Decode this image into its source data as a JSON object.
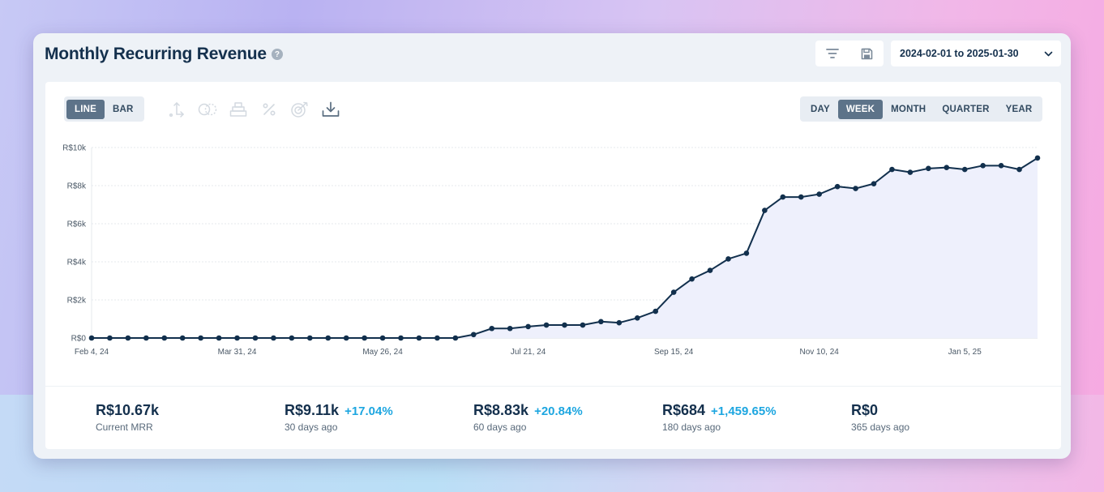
{
  "header": {
    "title": "Monthly Recurring Revenue",
    "help_icon": "question-icon",
    "tools": [
      "filter-icon",
      "save-icon"
    ],
    "date_range": "2024-02-01 to 2025-01-30"
  },
  "chart_type_toggle": {
    "options": [
      "LINE",
      "BAR"
    ],
    "selected": "LINE"
  },
  "chart_tools": [
    "axis-icon",
    "compare-icon",
    "stack-icon",
    "percent-icon",
    "goal-icon",
    "download-icon"
  ],
  "period_toggle": {
    "options": [
      "DAY",
      "WEEK",
      "MONTH",
      "QUARTER",
      "YEAR"
    ],
    "selected": "WEEK"
  },
  "colors": {
    "line": "#12304d",
    "fill": "#eef0fc",
    "accent_change": "#1da6e0",
    "active_toggle": "#5d7389"
  },
  "chart_data": {
    "type": "area",
    "ylabel": "",
    "xlabel": "",
    "ylim": [
      0,
      10000
    ],
    "yticks": [
      "R$0",
      "R$2k",
      "R$4k",
      "R$6k",
      "R$8k",
      "R$10k"
    ],
    "xticks": [
      "Feb 4, 24",
      "Mar 31, 24",
      "May 26, 24",
      "Jul 21, 24",
      "Sep 15, 24",
      "Nov 10, 24",
      "Jan 5, 25"
    ],
    "grid": true,
    "series": [
      {
        "values": [
          0,
          0,
          0,
          0,
          0,
          0,
          0,
          0,
          0,
          0,
          0,
          0,
          0,
          0,
          0,
          0,
          0,
          0,
          0,
          0,
          0,
          180,
          500,
          500,
          600,
          680,
          680,
          680,
          860,
          800,
          1050,
          1400,
          2400,
          3100,
          3550,
          4150,
          4450,
          6700,
          7400,
          7400,
          7550,
          7950,
          7850,
          8100,
          8850,
          8700,
          8900,
          8950,
          8850,
          9050,
          9050,
          8850,
          9450
        ]
      }
    ]
  },
  "stats": [
    {
      "value": "R$10.67k",
      "change": "",
      "label": "Current MRR"
    },
    {
      "value": "R$9.11k",
      "change": "+17.04%",
      "label": "30 days ago"
    },
    {
      "value": "R$8.83k",
      "change": "+20.84%",
      "label": "60 days ago"
    },
    {
      "value": "R$684",
      "change": "+1,459.65%",
      "label": "180 days ago"
    },
    {
      "value": "R$0",
      "change": "",
      "label": "365 days ago"
    }
  ]
}
